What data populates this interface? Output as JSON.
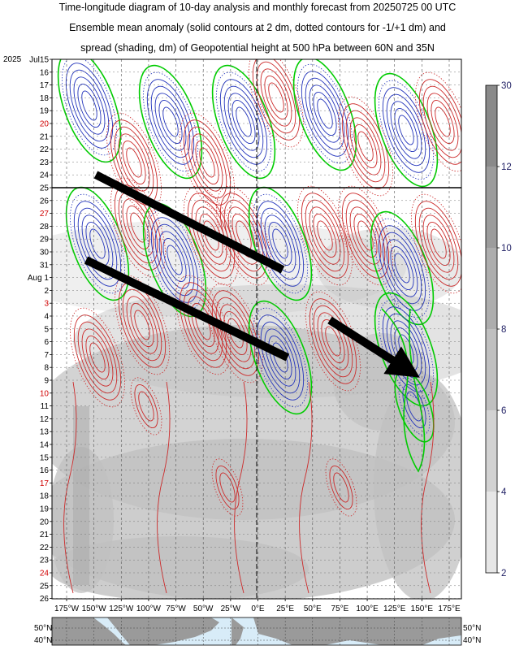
{
  "title": {
    "line1": "Time-longitude diagram of 10-day analysis and monthly forecast from 20250725 00 UTC",
    "line2": "Ensemble mean anomaly (solid contours at 2 dm, dotted contours for -1/+1 dm) and",
    "line3": "spread (shading, dm) of Geopotential height at 500 hPa between 60N and 35N"
  },
  "chart_data": {
    "type": "heatmap",
    "year_label": "2025",
    "y_ticks": [
      {
        "label": "Jul15",
        "red": false
      },
      {
        "label": "16",
        "red": false
      },
      {
        "label": "17",
        "red": false
      },
      {
        "label": "18",
        "red": false
      },
      {
        "label": "19",
        "red": false
      },
      {
        "label": "20",
        "red": true
      },
      {
        "label": "21",
        "red": false
      },
      {
        "label": "22",
        "red": false
      },
      {
        "label": "23",
        "red": false
      },
      {
        "label": "24",
        "red": false
      },
      {
        "label": "25",
        "red": false
      },
      {
        "label": "26",
        "red": false
      },
      {
        "label": "27",
        "red": true
      },
      {
        "label": "28",
        "red": false
      },
      {
        "label": "29",
        "red": false
      },
      {
        "label": "30",
        "red": false
      },
      {
        "label": "31",
        "red": false
      },
      {
        "label": "Aug  1",
        "red": false
      },
      {
        "label": "2",
        "red": false
      },
      {
        "label": "3",
        "red": true
      },
      {
        "label": "4",
        "red": false
      },
      {
        "label": "5",
        "red": false
      },
      {
        "label": "6",
        "red": false
      },
      {
        "label": "7",
        "red": false
      },
      {
        "label": "8",
        "red": false
      },
      {
        "label": "9",
        "red": false
      },
      {
        "label": "10",
        "red": true
      },
      {
        "label": "11",
        "red": false
      },
      {
        "label": "12",
        "red": false
      },
      {
        "label": "13",
        "red": false
      },
      {
        "label": "14",
        "red": false
      },
      {
        "label": "15",
        "red": false
      },
      {
        "label": "16",
        "red": false
      },
      {
        "label": "17",
        "red": true
      },
      {
        "label": "18",
        "red": false
      },
      {
        "label": "19",
        "red": false
      },
      {
        "label": "20",
        "red": false
      },
      {
        "label": "21",
        "red": false
      },
      {
        "label": "22",
        "red": false
      },
      {
        "label": "23",
        "red": false
      },
      {
        "label": "24",
        "red": true
      },
      {
        "label": "25",
        "red": false
      },
      {
        "label": "26",
        "red": false
      }
    ],
    "x_ticks": [
      "175°W",
      "150°W",
      "125°W",
      "100°W",
      "75°W",
      "50°W",
      "25°W",
      "0°E",
      "25°E",
      "50°E",
      "75°E",
      "100°E",
      "125°E",
      "150°E",
      "175°E"
    ],
    "colorbar": {
      "ticks": [
        "30",
        "12",
        "10",
        "8",
        "6",
        "4",
        "2"
      ]
    },
    "map_lat_labels": [
      "50°N",
      "40°N"
    ],
    "analysis_end_line": "25",
    "arrows": 3,
    "colors": {
      "positive": "#cc2a2a",
      "negative": "#2233bb",
      "zero": "#00cc00",
      "spread": "#c0c0c0",
      "ocean": "#d8ecf8",
      "land": "#9a9a9a"
    }
  }
}
